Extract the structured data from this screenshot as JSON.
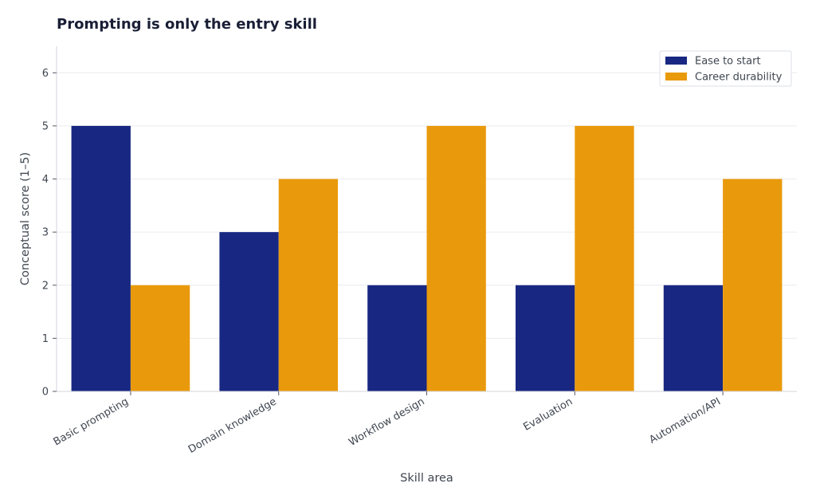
{
  "chart_data": {
    "type": "bar",
    "title": "Prompting is only the entry skill",
    "xlabel": "Skill area",
    "ylabel": "Conceptual score (1–5)",
    "categories": [
      "Basic prompting",
      "Domain knowledge",
      "Workflow design",
      "Evaluation",
      "Automation/API"
    ],
    "series": [
      {
        "name": "Ease to start",
        "values": [
          5,
          3,
          2,
          2,
          2
        ],
        "color": "#182882"
      },
      {
        "name": "Career durability",
        "values": [
          2,
          4,
          5,
          5,
          4
        ],
        "color": "#e99a0c"
      }
    ],
    "ylim": [
      0,
      6.5
    ],
    "yticks": [
      "0",
      "1",
      "2",
      "3",
      "4",
      "5",
      "6"
    ],
    "grid": true,
    "legend_position": "top-right"
  }
}
